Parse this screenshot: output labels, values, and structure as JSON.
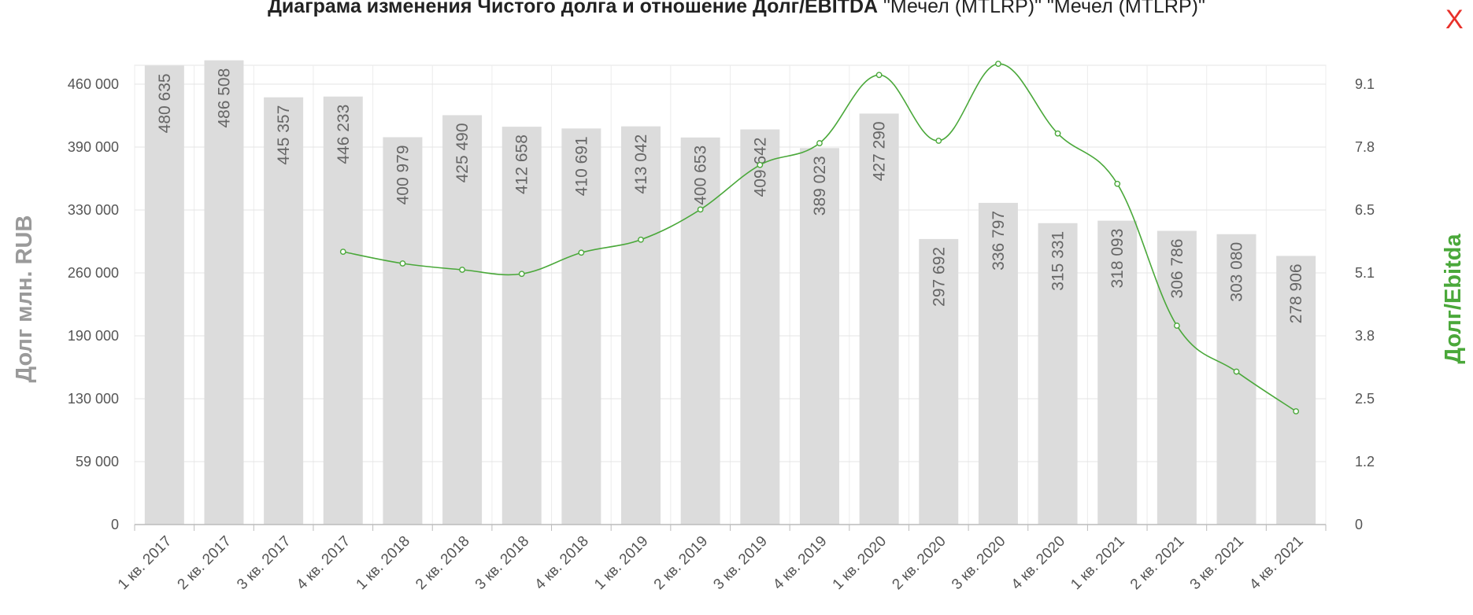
{
  "title": {
    "bold": "Диаграма изменения Чистого долга и отношение Долг/EBITDA",
    "rest": " \"Мечел (MTLRP)\" \"Мечел (MTLRP)\""
  },
  "close_label": "X",
  "chart_data": {
    "type": "bar",
    "categories": [
      "1 кв. 2017",
      "2 кв. 2017",
      "3 кв. 2017",
      "4 кв. 2017",
      "1 кв. 2018",
      "2 кв. 2018",
      "3 кв. 2018",
      "4 кв. 2018",
      "1 кв. 2019",
      "2 кв. 2019",
      "3 кв. 2019",
      "4 кв. 2019",
      "1 кв. 2020",
      "2 кв. 2020",
      "3 кв. 2020",
      "4 кв. 2020",
      "1 кв. 2021",
      "2 кв. 2021",
      "3 кв. 2021",
      "4 кв. 2021"
    ],
    "series": [
      {
        "type": "bar",
        "axis": "left",
        "color": "#dcdcdc",
        "values": [
          480635,
          486508,
          445357,
          446233,
          400979,
          425490,
          412658,
          410691,
          413042,
          400653,
          409642,
          389023,
          427290,
          297692,
          336797,
          315331,
          318093,
          306786,
          303080,
          278906
        ],
        "labels": [
          "480 635",
          "486 508",
          "445 357",
          "446 233",
          "400 979",
          "425 490",
          "412 658",
          "410 691",
          "413 042",
          "400 653",
          "409 642",
          "389 023",
          "427 290",
          "297 692",
          "336 797",
          "315 331",
          "318 093",
          "306 786",
          "303 080",
          "278 906"
        ]
      },
      {
        "type": "line",
        "axis": "right",
        "color": "#4aa83a",
        "values": [
          null,
          null,
          null,
          5.57,
          5.31,
          5.17,
          5.08,
          5.55,
          5.84,
          6.51,
          7.43,
          7.88,
          9.29,
          7.93,
          9.52,
          8.08,
          7.04,
          4.01,
          3.06,
          2.24
        ]
      }
    ],
    "y_left": {
      "label": "Долг млн. RUB",
      "ticks": [
        0,
        59000,
        130000,
        190000,
        260000,
        330000,
        390000,
        460000
      ],
      "tick_labels": [
        "0",
        "59 000",
        "130 000",
        "190 000",
        "260 000",
        "330 000",
        "390 000",
        "460 000"
      ]
    },
    "y_right": {
      "label": "Долг/Ebitda",
      "ticks": [
        0,
        1.2,
        2.5,
        3.8,
        5.1,
        6.5,
        7.8,
        9.1
      ],
      "tick_labels": [
        "0",
        "1.2",
        "2.5",
        "3.8",
        "5.1",
        "6.5",
        "7.8",
        "9.1"
      ]
    },
    "grid": true
  }
}
